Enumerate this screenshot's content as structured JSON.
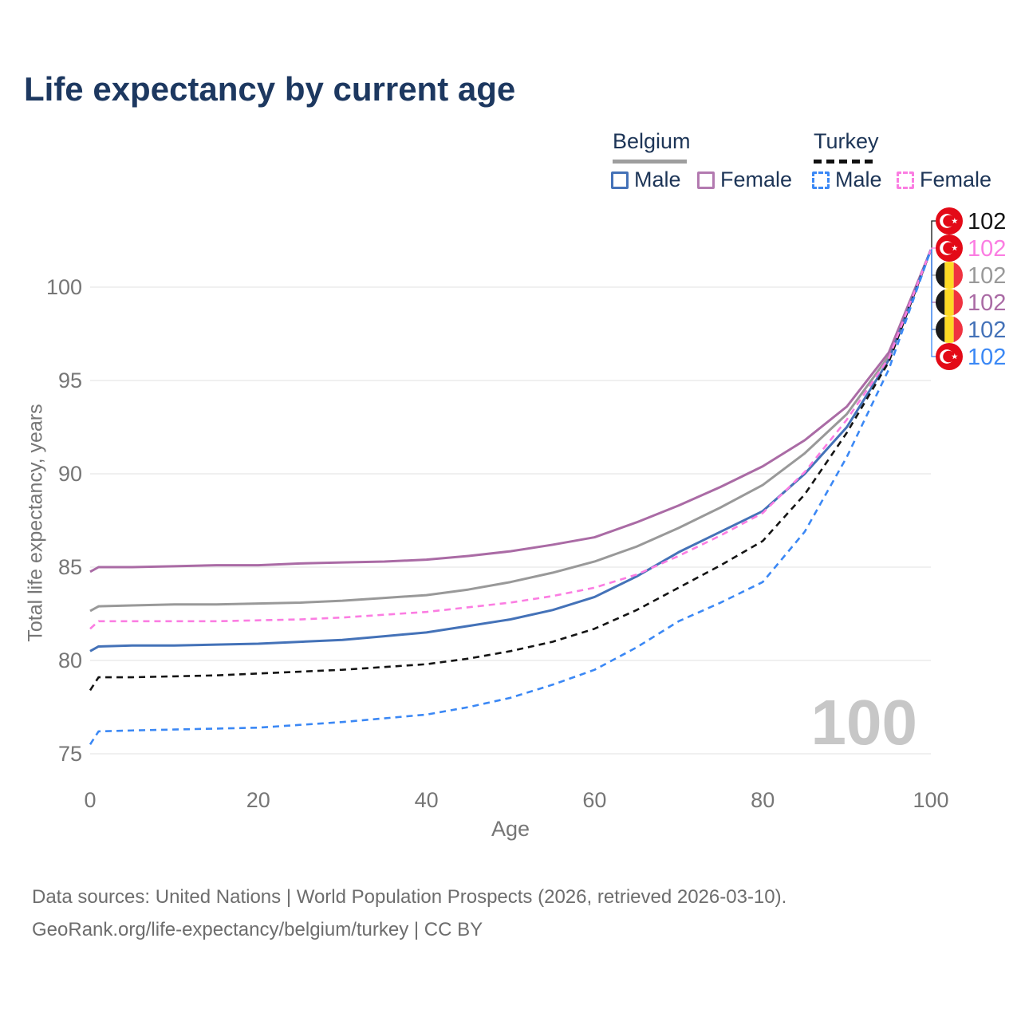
{
  "title": "Life expectancy by current age",
  "watermark_age": "100",
  "footer": {
    "line1": "Data sources: United Nations | World Population Prospects (2026, retrieved 2026-03-10).",
    "line2": "GeoRank.org/life-expectancy/belgium/turkey | CC BY"
  },
  "legend": {
    "groups": [
      {
        "label": "Belgium",
        "line_style": "solid",
        "items": [
          {
            "label": "Male",
            "color": "#4472b8",
            "dash": "solid"
          },
          {
            "label": "Female",
            "color": "#b37ab0",
            "dash": "solid"
          }
        ]
      },
      {
        "label": "Turkey",
        "line_style": "dashed",
        "items": [
          {
            "label": "Male",
            "color": "#3b88f5",
            "dash": "dashed"
          },
          {
            "label": "Female",
            "color": "#fb7de2",
            "dash": "dashed"
          }
        ]
      }
    ]
  },
  "chart_data": {
    "type": "line",
    "title": "Life expectancy by current age",
    "xlabel": "Age",
    "ylabel": "Total life expectancy, years",
    "xlim": [
      0,
      100
    ],
    "ylim": [
      74,
      103
    ],
    "x_ticks": [
      0,
      20,
      40,
      60,
      80,
      100
    ],
    "y_ticks": [
      75,
      80,
      85,
      90,
      95,
      100
    ],
    "grid": "horizontal-only",
    "legend_position": "top-right",
    "x": [
      0,
      1,
      5,
      10,
      15,
      20,
      25,
      30,
      35,
      40,
      45,
      50,
      55,
      60,
      65,
      70,
      75,
      80,
      85,
      90,
      95,
      100
    ],
    "series": [
      {
        "name": "Turkey — Total",
        "country": "Turkey",
        "sex": "total",
        "color": "#141414",
        "dash": "dashed",
        "flag": "turkey-flag-icon",
        "end_label": "102",
        "values": [
          78.4,
          79.1,
          79.1,
          79.15,
          79.2,
          79.3,
          79.4,
          79.5,
          79.65,
          79.8,
          80.1,
          80.5,
          81.0,
          81.7,
          82.7,
          83.9,
          85.1,
          86.4,
          88.9,
          92.2,
          96.0,
          102
        ]
      },
      {
        "name": "Turkey — Female",
        "country": "Turkey",
        "sex": "female",
        "color": "#fb7de2",
        "dash": "dashed",
        "flag": "turkey-flag-icon",
        "end_label": "102",
        "values": [
          81.7,
          82.1,
          82.1,
          82.1,
          82.1,
          82.15,
          82.2,
          82.3,
          82.45,
          82.6,
          82.85,
          83.1,
          83.45,
          83.9,
          84.6,
          85.6,
          86.7,
          87.9,
          90.1,
          92.9,
          96.2,
          102
        ]
      },
      {
        "name": "Belgium — Total",
        "country": "Belgium",
        "sex": "total",
        "color": "#999999",
        "dash": "solid",
        "flag": "belgium-flag-icon",
        "end_label": "102",
        "values": [
          82.65,
          82.9,
          82.95,
          83.0,
          83.0,
          83.05,
          83.1,
          83.2,
          83.35,
          83.5,
          83.8,
          84.2,
          84.7,
          85.3,
          86.1,
          87.1,
          88.2,
          89.4,
          91.1,
          93.2,
          96.3,
          102
        ]
      },
      {
        "name": "Belgium — Female",
        "country": "Belgium",
        "sex": "female",
        "color": "#aa6ba5",
        "dash": "solid",
        "flag": "belgium-flag-icon",
        "end_label": "102",
        "values": [
          84.75,
          85.0,
          85.0,
          85.05,
          85.1,
          85.1,
          85.2,
          85.25,
          85.3,
          85.4,
          85.6,
          85.85,
          86.2,
          86.6,
          87.4,
          88.3,
          89.3,
          90.4,
          91.8,
          93.6,
          96.5,
          102
        ]
      },
      {
        "name": "Belgium — Male",
        "country": "Belgium",
        "sex": "male",
        "color": "#4472b8",
        "dash": "solid",
        "flag": "belgium-flag-icon",
        "end_label": "102",
        "values": [
          80.5,
          80.75,
          80.8,
          80.8,
          80.85,
          80.9,
          81.0,
          81.1,
          81.3,
          81.5,
          81.85,
          82.2,
          82.7,
          83.4,
          84.5,
          85.8,
          86.9,
          88.0,
          90.0,
          92.5,
          96.1,
          102
        ]
      },
      {
        "name": "Turkey — Male",
        "country": "Turkey",
        "sex": "male",
        "color": "#3b88f5",
        "dash": "dashed",
        "flag": "turkey-flag-icon",
        "end_label": "102",
        "values": [
          75.5,
          76.2,
          76.25,
          76.3,
          76.35,
          76.4,
          76.55,
          76.7,
          76.9,
          77.1,
          77.5,
          78.0,
          78.7,
          79.5,
          80.7,
          82.1,
          83.1,
          84.2,
          86.9,
          90.9,
          95.6,
          102
        ]
      }
    ],
    "flag_colors": {
      "turkey_red": "#e30a17",
      "belgium_black": "#1a1a1a",
      "belgium_yellow": "#FDDA24",
      "belgium_red": "#EF3340"
    }
  }
}
